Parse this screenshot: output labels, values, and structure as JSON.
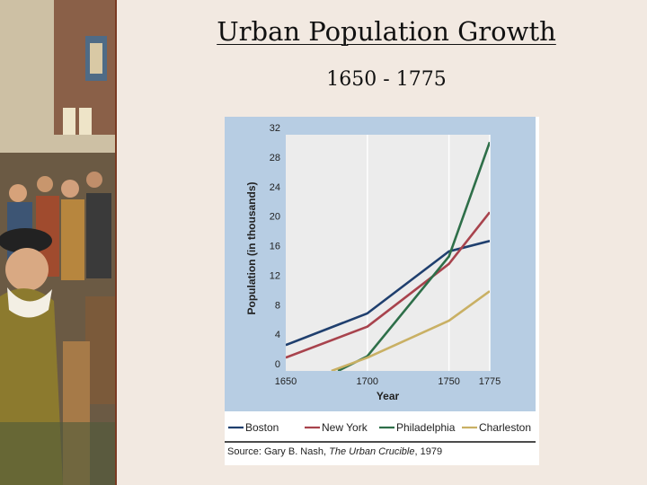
{
  "page": {
    "title": "Urban Population Growth",
    "subtitle": "1650 - 1775",
    "source_prefix": "Source: Gary B. Nash, ",
    "source_book": "The Urban Crucible",
    "source_suffix": ", 1979",
    "background": "#f2e9e1",
    "plot_panel_color": "#b7cde3",
    "plot_area_color": "#ececec"
  },
  "chart_data": {
    "type": "line",
    "title": "",
    "xlabel": "Year",
    "ylabel": "Population (in thousands)",
    "xlim": [
      1650,
      1775
    ],
    "ylim": [
      0,
      32
    ],
    "xticks": [
      1650,
      1700,
      1750,
      1775
    ],
    "yticks": [
      0,
      4,
      8,
      12,
      16,
      20,
      24,
      28,
      32
    ],
    "grid": true,
    "legend": "bottom",
    "series": [
      {
        "name": "Boston",
        "color": "#1f3f6e",
        "x": [
          1650,
          1700,
          1750,
          1775
        ],
        "y": [
          3.5,
          7.8,
          16.2,
          17.6
        ]
      },
      {
        "name": "New York",
        "color": "#a8434d",
        "x": [
          1650,
          1700,
          1750,
          1775
        ],
        "y": [
          1.8,
          6.0,
          14.5,
          21.5
        ]
      },
      {
        "name": "Philadelphia",
        "color": "#2e6f49",
        "x": [
          1682,
          1700,
          1750,
          1775
        ],
        "y": [
          0,
          2.0,
          15.5,
          31.0
        ]
      },
      {
        "name": "Charleston",
        "color": "#c9b064",
        "x": [
          1678,
          1700,
          1750,
          1775
        ],
        "y": [
          0,
          1.8,
          6.8,
          10.8
        ]
      }
    ]
  }
}
